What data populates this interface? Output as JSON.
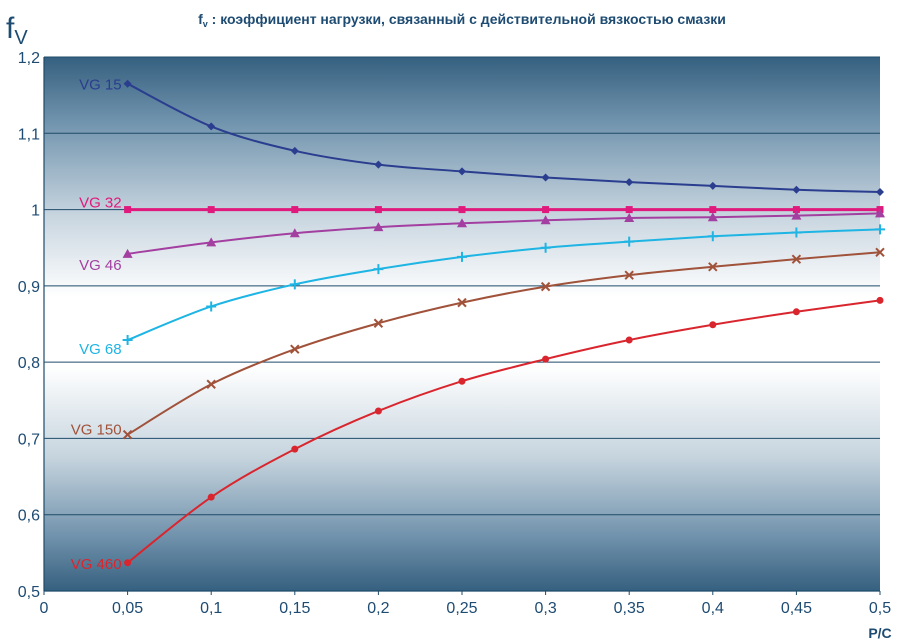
{
  "chart_data": {
    "type": "line",
    "title": "f",
    "title_sub": "v",
    "title_rest": " : коэффициент нагрузки, связанный с действительной вязкостью смазки",
    "ylabel_main": "f",
    "ylabel_sub": "V",
    "xlabel": "P/C",
    "xlim": [
      0,
      0.5
    ],
    "ylim": [
      0.5,
      1.2
    ],
    "x_ticks": [
      0,
      0.05,
      0.1,
      0.15,
      0.2,
      0.25,
      0.3,
      0.35,
      0.4,
      0.45,
      0.5
    ],
    "x_tick_labels": [
      "0",
      "0,05",
      "0,1",
      "0,15",
      "0,2",
      "0,25",
      "0,3",
      "0,35",
      "0,4",
      "0,45",
      "0,5"
    ],
    "y_ticks": [
      0.5,
      0.6,
      0.7,
      0.8,
      0.9,
      1.0,
      1.1,
      1.2
    ],
    "y_tick_labels": [
      "0,5",
      "0,6",
      "0,7",
      "0,8",
      "0,9",
      "1",
      "1,1",
      "1,2"
    ],
    "grid": "horizontal",
    "x": [
      0.05,
      0.1,
      0.15,
      0.2,
      0.25,
      0.3,
      0.35,
      0.4,
      0.45,
      0.5
    ],
    "series": [
      {
        "name": "VG 15",
        "color": "#2a3d8f",
        "marker": "diamond",
        "values": [
          1.165,
          1.109,
          1.077,
          1.059,
          1.05,
          1.042,
          1.036,
          1.031,
          1.026,
          1.023
        ]
      },
      {
        "name": "VG 32",
        "color": "#e0197d",
        "marker": "square",
        "values": [
          1.0,
          1.0,
          1.0,
          1.0,
          1.0,
          1.0,
          1.0,
          1.0,
          1.0,
          1.0
        ]
      },
      {
        "name": "VG 46",
        "color": "#a33fa0",
        "marker": "triangle",
        "values": [
          0.942,
          0.957,
          0.969,
          0.977,
          0.982,
          0.986,
          0.989,
          0.99,
          0.992,
          0.995
        ]
      },
      {
        "name": "VG 68",
        "color": "#1eb4e3",
        "marker": "plus",
        "values": [
          0.829,
          0.873,
          0.902,
          0.922,
          0.938,
          0.95,
          0.958,
          0.965,
          0.97,
          0.974
        ]
      },
      {
        "name": "VG 150",
        "color": "#a0523a",
        "marker": "x",
        "values": [
          0.705,
          0.771,
          0.817,
          0.851,
          0.878,
          0.899,
          0.914,
          0.925,
          0.935,
          0.944
        ]
      },
      {
        "name": "VG 460",
        "color": "#d9262e",
        "marker": "circle",
        "values": [
          0.537,
          0.623,
          0.686,
          0.736,
          0.775,
          0.804,
          0.829,
          0.849,
          0.866,
          0.881
        ]
      }
    ]
  }
}
